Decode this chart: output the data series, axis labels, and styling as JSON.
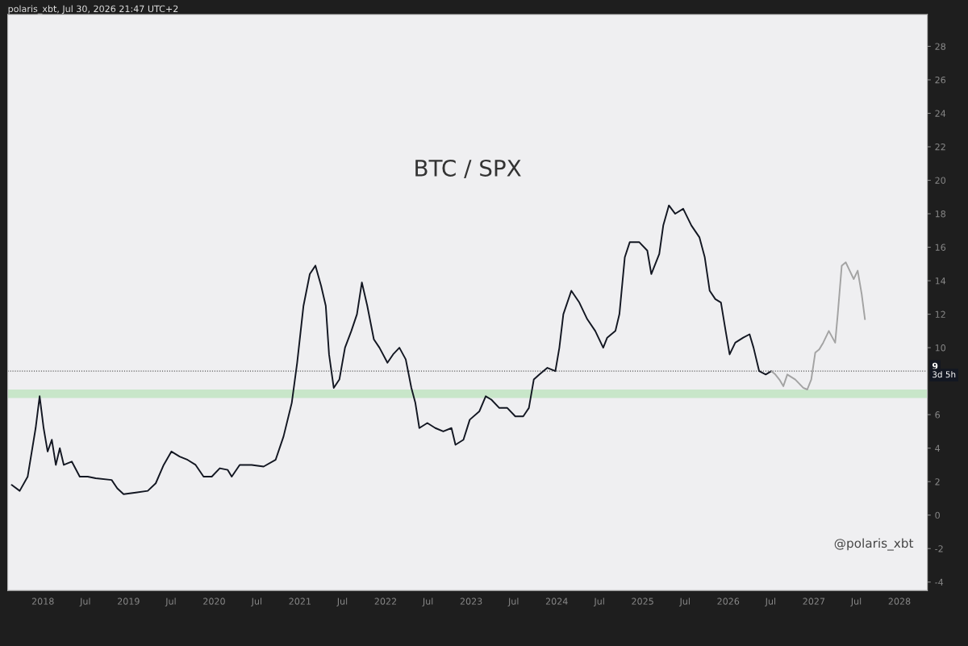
{
  "chart_data": {
    "type": "line",
    "title": "BTC / SPX",
    "subtitle": "polaris_xbt, Jul 30, 2026 21:47 UTC+2",
    "annotations": [
      "@polaris_xbt",
      "3d 5h"
    ],
    "series": [
      {
        "color": "#131722",
        "x": [
          "2017-08-21",
          "2017-09-24",
          "2017-10-28",
          "2017-12-01",
          "2017-12-18",
          "2018-01-04",
          "2018-01-21",
          "2018-02-08",
          "2018-02-25",
          "2018-03-14",
          "2018-03-31",
          "2018-05-04",
          "2018-06-07",
          "2018-07-11",
          "2018-08-14",
          "2018-10-21",
          "2018-11-14",
          "2018-12-11",
          "2019-02-01",
          "2019-03-24",
          "2019-04-27",
          "2019-05-31",
          "2019-07-03",
          "2019-08-07",
          "2019-09-10",
          "2019-10-14",
          "2019-11-17",
          "2019-12-22",
          "2020-01-25",
          "2020-02-28",
          "2020-03-16",
          "2020-04-19",
          "2020-06-09",
          "2020-07-30",
          "2020-09-19",
          "2020-10-23",
          "2020-11-27",
          "2020-12-20",
          "2021-01-16",
          "2021-02-12",
          "2021-03-08",
          "2021-04-01",
          "2021-04-21",
          "2021-05-05",
          "2021-05-25",
          "2021-06-18",
          "2021-07-12",
          "2021-08-08",
          "2021-09-01",
          "2021-09-22",
          "2021-10-15",
          "2021-11-12",
          "2021-12-06",
          "2022-01-09",
          "2022-02-02",
          "2022-03-01",
          "2022-03-28",
          "2022-04-21",
          "2022-05-08",
          "2022-05-25",
          "2022-06-28",
          "2022-08-01",
          "2022-09-04",
          "2022-10-09",
          "2022-10-26",
          "2022-11-29",
          "2022-12-26",
          "2023-02-05",
          "2023-03-04",
          "2023-03-28",
          "2023-05-01",
          "2023-06-04",
          "2023-07-08",
          "2023-08-11",
          "2023-09-04",
          "2023-09-25",
          "2023-10-19",
          "2023-11-22",
          "2023-12-26",
          "2024-01-12",
          "2024-01-29",
          "2024-03-03",
          "2024-04-06",
          "2024-05-10",
          "2024-06-13",
          "2024-07-17",
          "2024-08-03",
          "2024-09-07",
          "2024-09-24",
          "2024-10-17",
          "2024-11-07",
          "2024-12-18",
          "2025-01-21",
          "2025-02-07",
          "2025-03-13",
          "2025-03-30",
          "2025-04-23",
          "2025-05-20",
          "2025-06-23",
          "2025-07-28",
          "2025-08-31",
          "2025-09-23",
          "2025-10-14",
          "2025-11-07",
          "2025-12-01",
          "2025-12-21",
          "2026-01-07",
          "2026-01-31",
          "2026-03-06",
          "2026-04-02",
          "2026-04-19",
          "2026-05-13",
          "2026-06-10",
          "2026-07-04"
        ],
        "values": [
          1.8,
          1.45,
          2.3,
          5.2,
          7.1,
          5.2,
          3.8,
          4.5,
          3.0,
          4.0,
          3.0,
          3.2,
          2.3,
          2.3,
          2.2,
          2.1,
          1.6,
          1.25,
          1.35,
          1.45,
          1.9,
          3.0,
          3.8,
          3.5,
          3.3,
          3.0,
          2.3,
          2.3,
          2.8,
          2.7,
          2.3,
          3.0,
          3.0,
          2.9,
          3.3,
          4.7,
          6.7,
          9.1,
          12.5,
          14.4,
          14.9,
          13.7,
          12.5,
          9.6,
          7.6,
          8.1,
          10.0,
          11.0,
          12.0,
          13.9,
          12.5,
          10.5,
          10.0,
          9.1,
          9.6,
          10.0,
          9.3,
          7.6,
          6.7,
          5.2,
          5.5,
          5.2,
          5.0,
          5.2,
          4.2,
          4.5,
          5.7,
          6.2,
          7.1,
          6.9,
          6.4,
          6.4,
          5.9,
          5.9,
          6.4,
          8.1,
          8.4,
          8.8,
          8.6,
          10.0,
          12.0,
          13.4,
          12.7,
          11.7,
          11.0,
          10.0,
          10.6,
          11.0,
          12.0,
          15.4,
          16.3,
          16.3,
          15.8,
          14.4,
          15.6,
          17.3,
          18.5,
          18.0,
          18.3,
          17.3,
          16.6,
          15.4,
          13.4,
          12.9,
          12.7,
          11.0,
          9.6,
          10.3,
          10.6,
          10.8,
          10.0,
          8.6,
          8.4,
          8.6
        ]
      },
      {
        "color": "#a3a3a3",
        "x": [
          "2026-07-04",
          "2026-07-21",
          "2026-08-07",
          "2026-08-24",
          "2026-09-10",
          "2026-10-14",
          "2026-11-17",
          "2026-12-04",
          "2026-12-21",
          "2027-01-07",
          "2027-01-24",
          "2027-02-10",
          "2027-03-06",
          "2027-04-02",
          "2027-04-13",
          "2027-04-30",
          "2027-05-17",
          "2027-06-03",
          "2027-06-20",
          "2027-07-07",
          "2027-07-24",
          "2027-08-07"
        ],
        "values": [
          8.6,
          8.4,
          8.1,
          7.7,
          8.4,
          8.1,
          7.6,
          7.5,
          8.1,
          9.7,
          9.9,
          10.3,
          11.0,
          10.3,
          12.0,
          14.9,
          15.1,
          14.6,
          14.1,
          14.6,
          13.2,
          11.7
        ]
      }
    ],
    "xlim": [
      "2017-08-04",
      "2028-04-29"
    ],
    "xticks": [
      {
        "value": "2018-01-01",
        "label": "2018"
      },
      {
        "value": "2018-07-01",
        "label": "Jul"
      },
      {
        "value": "2019-01-01",
        "label": "2019"
      },
      {
        "value": "2019-07-01",
        "label": "Jul"
      },
      {
        "value": "2020-01-01",
        "label": "2020"
      },
      {
        "value": "2020-07-01",
        "label": "Jul"
      },
      {
        "value": "2021-01-01",
        "label": "2021"
      },
      {
        "value": "2021-07-01",
        "label": "Jul"
      },
      {
        "value": "2022-01-01",
        "label": "2022"
      },
      {
        "value": "2022-07-01",
        "label": "Jul"
      },
      {
        "value": "2023-01-01",
        "label": "2023"
      },
      {
        "value": "2023-07-01",
        "label": "Jul"
      },
      {
        "value": "2024-01-01",
        "label": "2024"
      },
      {
        "value": "2024-07-01",
        "label": "Jul"
      },
      {
        "value": "2025-01-01",
        "label": "2025"
      },
      {
        "value": "2025-07-01",
        "label": "Jul"
      },
      {
        "value": "2026-01-01",
        "label": "2026"
      },
      {
        "value": "2026-07-01",
        "label": "Jul"
      },
      {
        "value": "2027-01-01",
        "label": "2027"
      },
      {
        "value": "2027-07-01",
        "label": "Jul"
      },
      {
        "value": "2028-01-01",
        "label": "2028"
      }
    ],
    "ylim": [
      -4.5,
      29.9
    ],
    "yticks": [
      -4,
      -2,
      0,
      2,
      4,
      6,
      10,
      12,
      14,
      16,
      18,
      20,
      22,
      24,
      26,
      28
    ],
    "ref_lines": [
      {
        "axis": "y",
        "value": 8.6,
        "label": "9",
        "color": "#555555",
        "line_style": "dotted"
      }
    ],
    "bands": [
      {
        "axis": "y",
        "from": 7.0,
        "to": 7.5,
        "color": "#c8e6c9"
      }
    ],
    "marker": "none",
    "line_style": "solid",
    "grid": false
  }
}
